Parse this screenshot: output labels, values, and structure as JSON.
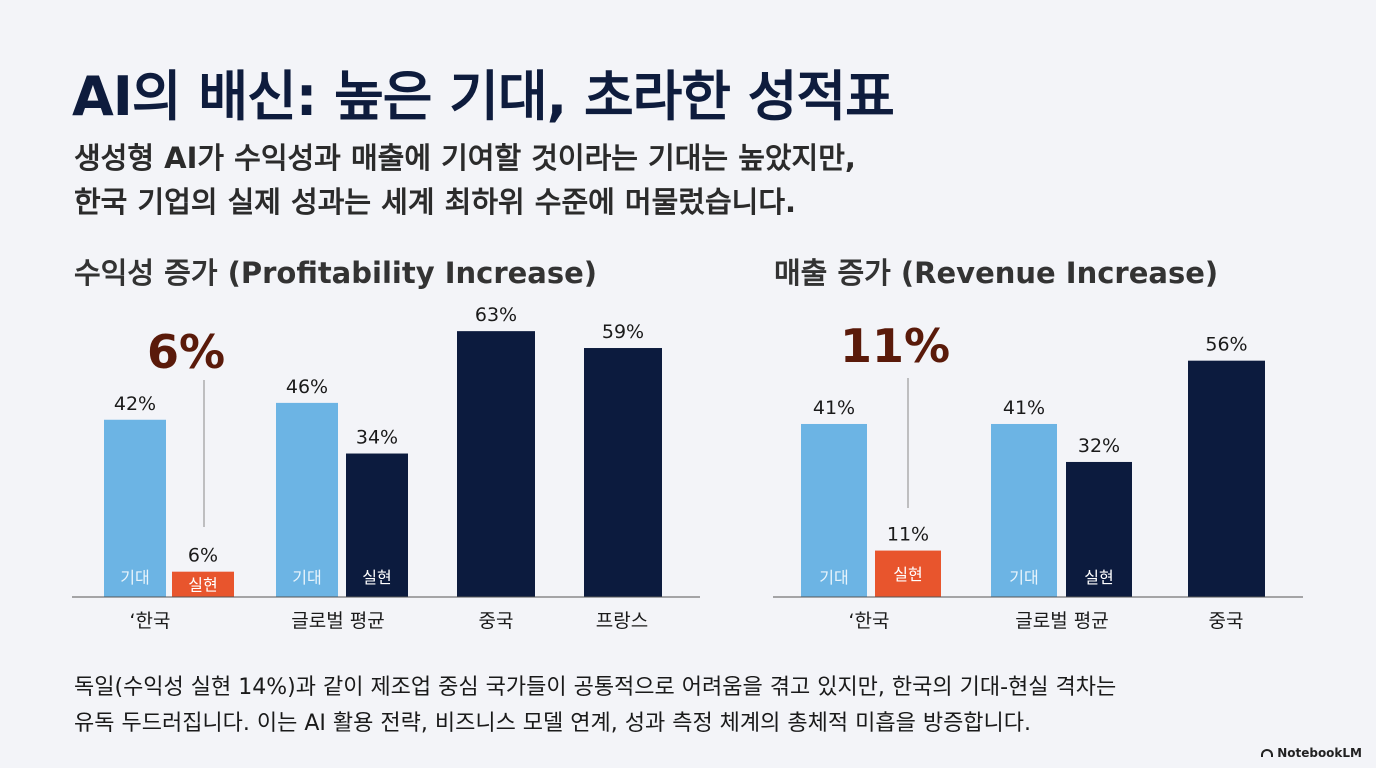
{
  "title": "AI의 배신: 높은 기대, 초라한 성적표",
  "subtitle": {
    "line1": "생성형 AI가 수익성과 매출에 기여할 것이라는 기대는 높았지만,",
    "line2": "한국 기업의 실제 성과는 세계 최하위 수준에 머물렀습니다."
  },
  "footer": {
    "line1": "독일(수익성 실현 14%)과 같이 제조업 중심 국가들이 공통적으로 어려움을 겪고 있지만, 한국의 기대-현실 격차는",
    "line2": "유독 두드러집니다. 이는 AI 활용 전략, 비즈니스 모델 연계, 성과 측정 체계의 총체적 미흡을 방증합니다."
  },
  "brand": "NotebookLM",
  "colors": {
    "expected": "#6cb4e4",
    "actual": "#0c1b3e",
    "highlight": "#e8552d",
    "callout": "#5a1a0a"
  },
  "chart_data": [
    {
      "type": "bar",
      "title": "수익성 증가 (Profitability Increase)",
      "ylabel": "%",
      "ylim": [
        0,
        70
      ],
      "callout": "6%",
      "categories": [
        "‘한국",
        "글로벌 평균",
        "중국",
        "프랑스"
      ],
      "bars": [
        {
          "category": "‘한국",
          "kind": "expected",
          "value": 42,
          "label": "42%",
          "inner": "기대"
        },
        {
          "category": "‘한국",
          "kind": "highlight",
          "value": 6,
          "label": "6%",
          "inner": "실현"
        },
        {
          "category": "글로벌 평균",
          "kind": "expected",
          "value": 46,
          "label": "46%",
          "inner": "기대"
        },
        {
          "category": "글로벌 평균",
          "kind": "actual",
          "value": 34,
          "label": "34%",
          "inner": "실현"
        },
        {
          "category": "중국",
          "kind": "actual",
          "value": 63,
          "label": "63%",
          "inner": ""
        },
        {
          "category": "프랑스",
          "kind": "actual",
          "value": 59,
          "label": "59%",
          "inner": ""
        }
      ]
    },
    {
      "type": "bar",
      "title": "매출 증가 (Revenue Increase)",
      "ylabel": "%",
      "ylim": [
        0,
        70
      ],
      "callout": "11%",
      "categories": [
        "‘한국",
        "글로벌 평균",
        "중국"
      ],
      "bars": [
        {
          "category": "‘한국",
          "kind": "expected",
          "value": 41,
          "label": "41%",
          "inner": "기대"
        },
        {
          "category": "‘한국",
          "kind": "highlight",
          "value": 11,
          "label": "11%",
          "inner": "실현"
        },
        {
          "category": "글로벌 평균",
          "kind": "expected",
          "value": 41,
          "label": "41%",
          "inner": "기대"
        },
        {
          "category": "글로벌 평균",
          "kind": "actual",
          "value": 32,
          "label": "32%",
          "inner": "실현"
        },
        {
          "category": "중국",
          "kind": "actual",
          "value": 56,
          "label": "56%",
          "inner": ""
        }
      ]
    }
  ]
}
